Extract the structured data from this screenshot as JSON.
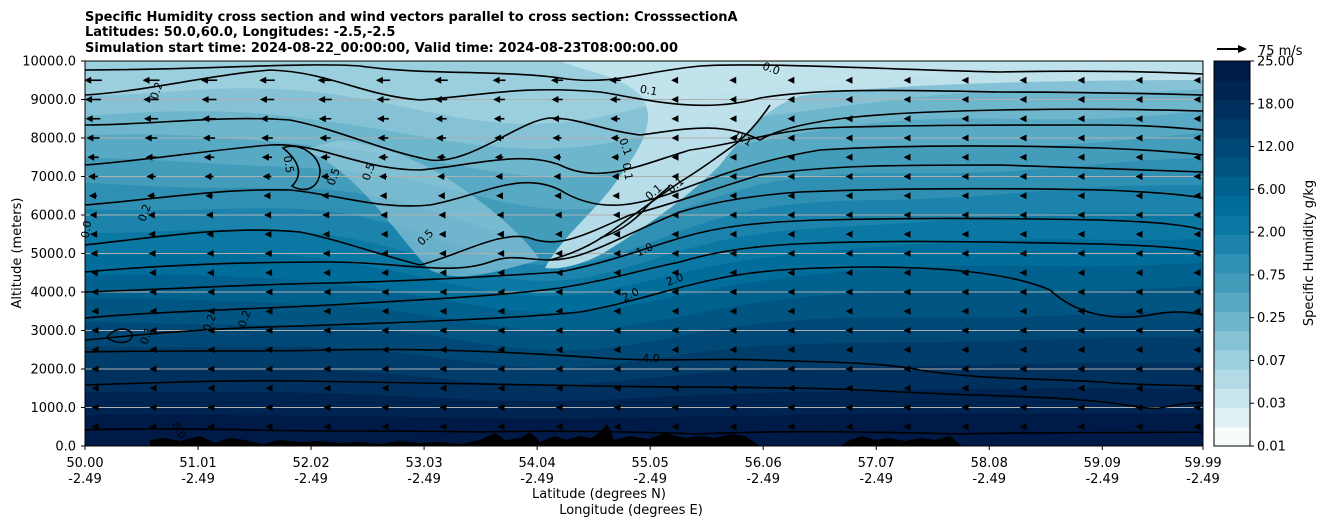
{
  "chart_data": {
    "type": "heatmap",
    "title_lines": [
      "Specific Humidity cross section and wind vectors parallel to cross section: CrosssectionA",
      "Latitudes: 50.0,60.0, Longitudes: -2.5,-2.5",
      "Simulation start time: 2024-08-22_00:00:00, Valid time: 2024-08-23T08:00:00.00"
    ],
    "ylabel": "Altitude (meters)",
    "xlabel_lat": "Latitude (degrees N)",
    "xlabel_lon": "Longitude (degrees E)",
    "x_range": [
      50.0,
      59.99
    ],
    "y_range": [
      0,
      10000
    ],
    "x_ticks": [
      {
        "lat": "50.00",
        "lon": "-2.49"
      },
      {
        "lat": "51.01",
        "lon": "-2.49"
      },
      {
        "lat": "52.02",
        "lon": "-2.49"
      },
      {
        "lat": "53.03",
        "lon": "-2.49"
      },
      {
        "lat": "54.04",
        "lon": "-2.49"
      },
      {
        "lat": "55.05",
        "lon": "-2.49"
      },
      {
        "lat": "56.06",
        "lon": "-2.49"
      },
      {
        "lat": "57.07",
        "lon": "-2.49"
      },
      {
        "lat": "58.08",
        "lon": "-2.49"
      },
      {
        "lat": "59.09",
        "lon": "-2.49"
      },
      {
        "lat": "59.99",
        "lon": "-2.49"
      }
    ],
    "y_ticks": [
      "0.0",
      "1000.0",
      "2000.0",
      "3000.0",
      "4000.0",
      "5000.0",
      "6000.0",
      "7000.0",
      "8000.0",
      "9000.0",
      "10000.0"
    ],
    "grid": "horizontal",
    "colorbar": {
      "label": "Specific Humidity g/kg",
      "levels": [
        "0.01",
        "0.03",
        "0.07",
        "0.25",
        "0.75",
        "2.00",
        "6.00",
        "12.00",
        "18.00",
        "25.00"
      ],
      "colors": [
        "#f7fbfc",
        "#e0f0f4",
        "#c8e6ee",
        "#b3dbe6",
        "#9ccfde",
        "#86c2d5",
        "#6eb6cc",
        "#58a9c3",
        "#429cba",
        "#2f90b4",
        "#1c84ac",
        "#0b78a4",
        "#006d9a",
        "#00618e",
        "#005582",
        "#004976",
        "#003d6a",
        "#00305e",
        "#002452",
        "#001a47"
      ]
    },
    "quiver_key": {
      "label": "75 m/s",
      "value": 75
    },
    "contour_labels": [
      "0.0",
      "0.1",
      "0.2",
      "0.5",
      "1.0",
      "2.0",
      "4.0",
      "8.0"
    ],
    "wind_direction": "southward (negative along cross section)",
    "wind_strength_by_altitude_m": [
      {
        "alt": 9500,
        "speed": 40
      },
      {
        "alt": 8000,
        "speed": 30
      },
      {
        "alt": 6000,
        "speed": 15
      },
      {
        "alt": 4000,
        "speed": 8
      },
      {
        "alt": 2000,
        "speed": 5
      },
      {
        "alt": 500,
        "speed": 2
      }
    ]
  }
}
